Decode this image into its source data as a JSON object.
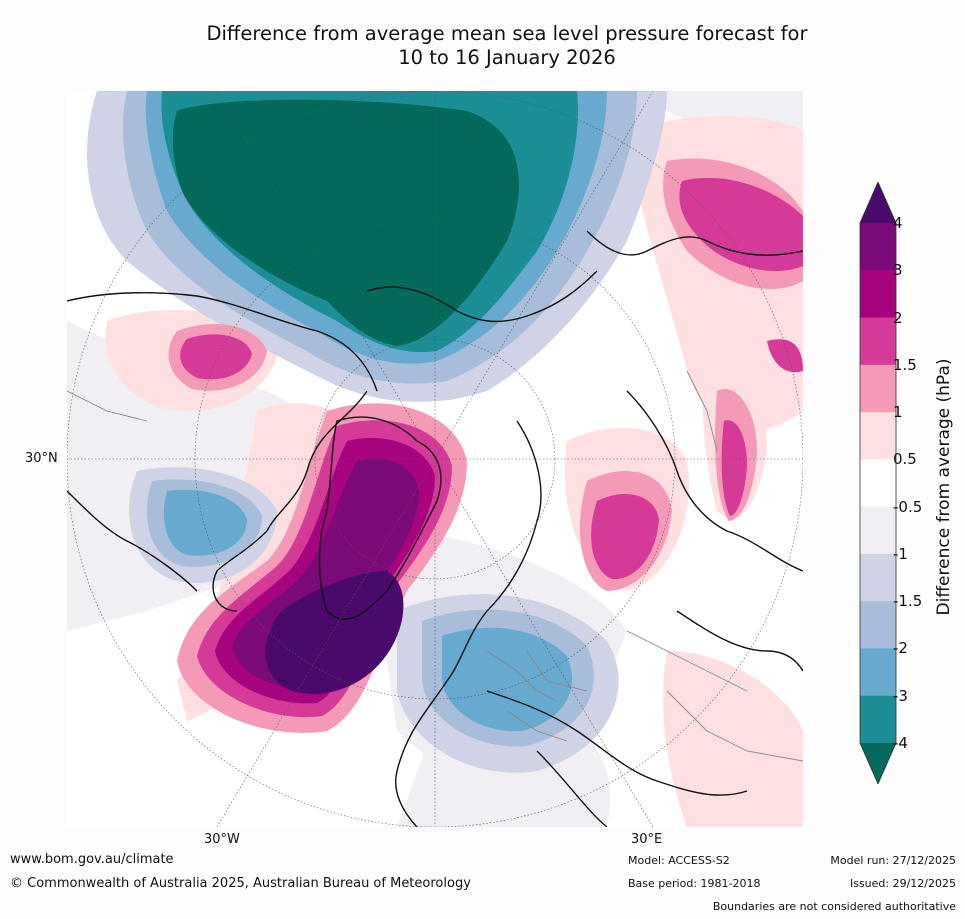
{
  "title": {
    "line1": "Difference from average mean sea level pressure forecast for",
    "line2": "10 to 16 January 2026"
  },
  "map": {
    "label_lat": "30°N",
    "label_lon_w": "30°W",
    "label_lon_e": "30°E",
    "colors": {
      "ocean_bg": "#ffffff",
      "coast": "#111111",
      "borders": "#888888",
      "grid": "#555555"
    }
  },
  "colorbar": {
    "title": "Difference from average (hPa)",
    "ticks": [
      "4",
      "3",
      "2",
      "1.5",
      "1",
      "0.5",
      "-0.5",
      "-1",
      "-1.5",
      "-2",
      "-3",
      "-4"
    ],
    "colors": [
      "#4a0a6c",
      "#7a0a78",
      "#a8037e",
      "#d63a98",
      "#f49ab6",
      "#fde0df",
      "#ffffff",
      "#f1eef4",
      "#d0d2e6",
      "#a8bdd9",
      "#67a9cf",
      "#1c8f96",
      "#03695a"
    ]
  },
  "footer": {
    "website": "www.bom.gov.au/climate",
    "copyright": "© Commonwealth of Australia 2025, Australian Bureau of Meteorology",
    "model": "Model: ACCESS-S2",
    "base_period": "Base period: 1981-2018",
    "model_run": "Model run: 27/12/2025",
    "issued": "Issued: 29/12/2025",
    "disclaimer": "Boundaries are not considered authoritative"
  }
}
